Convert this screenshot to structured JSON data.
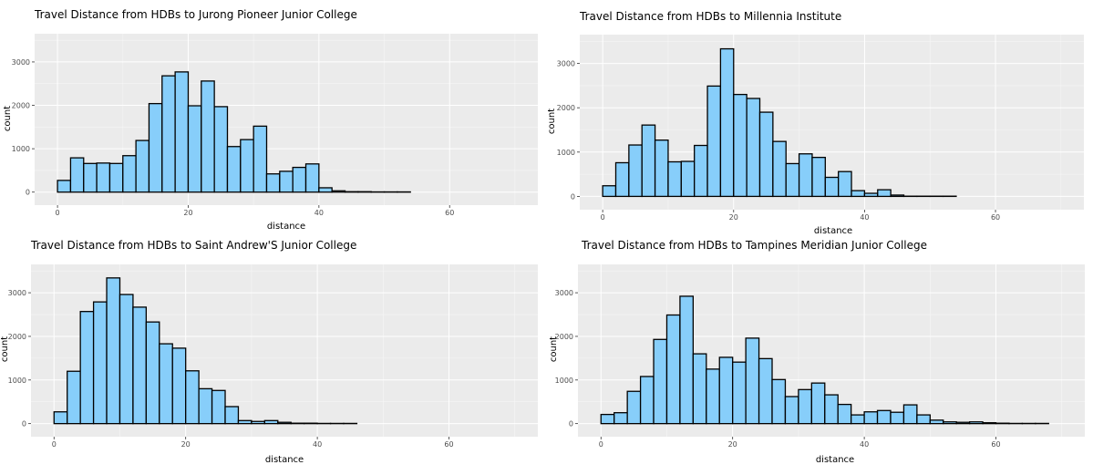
{
  "chart_data": [
    {
      "type": "bar",
      "title": "Travel Distance from HDBs to Jurong Pioneer Junior College",
      "xlabel": "distance",
      "ylabel": "count",
      "xlim": [
        -3.5,
        73.5
      ],
      "ylim": [
        -300,
        3650
      ],
      "xticks": [
        0,
        20,
        40,
        60
      ],
      "yticks": [
        0,
        1000,
        2000,
        3000
      ],
      "bin_width": 2,
      "bin_starts": [
        0,
        2,
        4,
        6,
        8,
        10,
        12,
        14,
        16,
        18,
        20,
        22,
        24,
        26,
        28,
        30,
        32,
        34,
        36,
        38,
        40,
        42,
        44,
        46,
        48,
        50,
        52,
        54,
        56,
        58,
        60,
        62,
        64,
        66,
        68
      ],
      "values": [
        270,
        790,
        660,
        670,
        660,
        840,
        1190,
        2040,
        2680,
        2770,
        1990,
        2560,
        1970,
        1050,
        1210,
        1520,
        420,
        480,
        570,
        650,
        100,
        30,
        10,
        10,
        5,
        5,
        5,
        0,
        0,
        0,
        0,
        0,
        0,
        0,
        0
      ],
      "grid": true
    },
    {
      "type": "bar",
      "title": "Travel Distance from HDBs to Millennia Institute",
      "xlabel": "distance",
      "ylabel": "count",
      "xlim": [
        -3.5,
        73.5
      ],
      "ylim": [
        -300,
        3650
      ],
      "xticks": [
        0,
        20,
        40,
        60
      ],
      "yticks": [
        0,
        1000,
        2000,
        3000
      ],
      "bin_width": 2,
      "bin_starts": [
        0,
        2,
        4,
        6,
        8,
        10,
        12,
        14,
        16,
        18,
        20,
        22,
        24,
        26,
        28,
        30,
        32,
        34,
        36,
        38,
        40,
        42,
        44,
        46,
        48,
        50,
        52,
        54,
        56,
        58,
        60,
        62,
        64,
        66,
        68
      ],
      "values": [
        240,
        760,
        1160,
        1610,
        1270,
        780,
        790,
        1150,
        2490,
        3330,
        2300,
        2210,
        1900,
        1240,
        740,
        960,
        880,
        430,
        560,
        130,
        70,
        150,
        30,
        5,
        5,
        5,
        5,
        0,
        0,
        0,
        0,
        0,
        0,
        0,
        0
      ],
      "grid": true
    },
    {
      "type": "bar",
      "title": "Travel Distance from HDBs to Saint Andrew'S Junior College",
      "xlabel": "distance",
      "ylabel": "count",
      "xlim": [
        -3.5,
        73.5
      ],
      "ylim": [
        -300,
        3650
      ],
      "xticks": [
        0,
        20,
        40,
        60
      ],
      "yticks": [
        0,
        1000,
        2000,
        3000
      ],
      "bin_width": 2,
      "bin_starts": [
        0,
        2,
        4,
        6,
        8,
        10,
        12,
        14,
        16,
        18,
        20,
        22,
        24,
        26,
        28,
        30,
        32,
        34,
        36,
        38,
        40,
        42,
        44,
        46,
        48,
        50,
        52,
        54,
        56,
        58,
        60,
        62,
        64,
        66,
        68
      ],
      "values": [
        270,
        1200,
        2570,
        2790,
        3340,
        2960,
        2670,
        2330,
        1830,
        1730,
        1210,
        800,
        760,
        390,
        70,
        50,
        70,
        30,
        10,
        10,
        5,
        5,
        5,
        0,
        0,
        0,
        0,
        0,
        0,
        0,
        0,
        0,
        0,
        0,
        0
      ],
      "grid": true
    },
    {
      "type": "bar",
      "title": "Travel Distance from HDBs to Tampines Meridian Junior College",
      "xlabel": "distance",
      "ylabel": "count",
      "xlim": [
        -3.5,
        73.5
      ],
      "ylim": [
        -300,
        3650
      ],
      "xticks": [
        0,
        20,
        40,
        60
      ],
      "yticks": [
        0,
        1000,
        2000,
        3000
      ],
      "bin_width": 2,
      "bin_starts": [
        0,
        2,
        4,
        6,
        8,
        10,
        12,
        14,
        16,
        18,
        20,
        22,
        24,
        26,
        28,
        30,
        32,
        34,
        36,
        38,
        40,
        42,
        44,
        46,
        48,
        50,
        52,
        54,
        56,
        58,
        60,
        62,
        64,
        66,
        68
      ],
      "values": [
        210,
        250,
        740,
        1080,
        1930,
        2490,
        2920,
        1600,
        1250,
        1520,
        1410,
        1960,
        1490,
        1010,
        620,
        780,
        930,
        660,
        440,
        200,
        270,
        300,
        260,
        430,
        200,
        80,
        40,
        30,
        40,
        20,
        10,
        5,
        5,
        5,
        0
      ],
      "grid": true
    }
  ]
}
